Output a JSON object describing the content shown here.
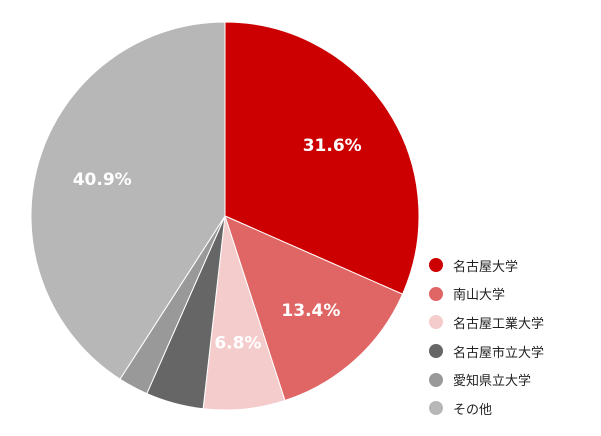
{
  "chart_data": {
    "type": "pie",
    "start_angle_deg": 0,
    "direction": "clockwise",
    "legend_position": "right",
    "slices": [
      {
        "name": "名古屋大学",
        "value": 31.6,
        "label": "31.6%",
        "color": "#cc0000"
      },
      {
        "name": "南山大学",
        "value": 13.4,
        "label": "13.4%",
        "color": "#e06666"
      },
      {
        "name": "名古屋工業大学",
        "value": 6.8,
        "label": "6.8%",
        "color": "#f4cccc"
      },
      {
        "name": "名古屋市立大学",
        "value": 4.8,
        "label": "",
        "color": "#666666"
      },
      {
        "name": "愛知県立大学",
        "value": 2.5,
        "label": "",
        "color": "#999999"
      },
      {
        "name": "その他",
        "value": 40.9,
        "label": "40.9%",
        "color": "#b7b7b7"
      }
    ]
  }
}
